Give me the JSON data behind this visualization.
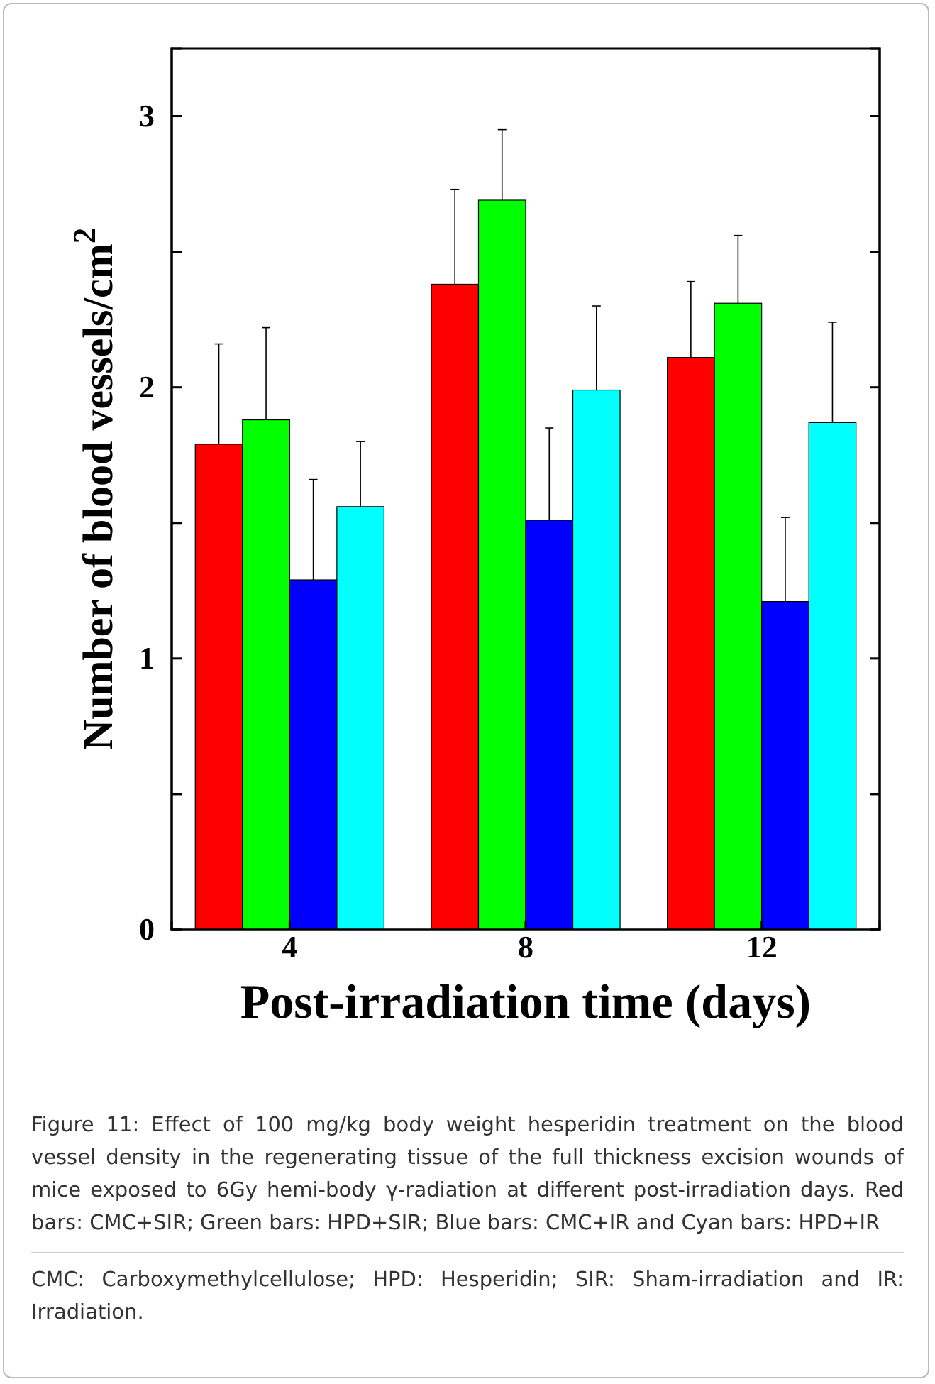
{
  "chart_data": {
    "type": "bar",
    "xlabel": "Post-irradiation time (days)",
    "ylabel": "Number of blood vessels/cm$^{2}$",
    "categories": [
      "4",
      "8",
      "12"
    ],
    "series": [
      {
        "color": "#ff0000",
        "values": [
          1.79,
          2.38,
          2.11
        ],
        "errors": [
          [
            1.79,
            2.16
          ],
          [
            2.38,
            2.73
          ],
          [
            2.11,
            2.39
          ]
        ]
      },
      {
        "color": "#00ff00",
        "values": [
          1.88,
          2.69,
          2.31
        ],
        "errors": [
          [
            1.88,
            2.22
          ],
          [
            2.69,
            2.95
          ],
          [
            2.31,
            2.56
          ]
        ]
      },
      {
        "color": "#0000ff",
        "values": [
          1.29,
          1.51,
          1.21
        ],
        "errors": [
          [
            1.29,
            1.66
          ],
          [
            1.51,
            1.85
          ],
          [
            1.21,
            1.52
          ]
        ]
      },
      {
        "color": "#00ffff",
        "values": [
          1.56,
          1.99,
          1.87
        ],
        "errors": [
          [
            1.56,
            1.8
          ],
          [
            1.99,
            2.3
          ],
          [
            1.87,
            2.24
          ]
        ]
      }
    ],
    "ylim": [
      0,
      3.25
    ],
    "yticks": [
      0,
      {
        "value": 0.5,
        "label": null
      },
      1,
      {
        "value": 1.5,
        "label": null
      },
      2,
      {
        "value": 2.5,
        "label": null
      },
      3
    ],
    "grid": false,
    "annotations": [
      "Figure 11: Effect of 100 mg/kg body weight hesperidin treatment on the blood vessel density in the regenerating tissue of the full thickness excision wounds of mice exposed to 6Gy hemi-body γ-radiation at different post-irradiation days. Red bars: CMC+SIR; Green bars: HPD+SIR; Blue bars: CMC+IR and Cyan bars: HPD+IR",
      "CMC: Carboxymethylcellulose; HPD: Hesperidin; SIR: Sham-irradiation and IR: Irradiation."
    ]
  }
}
